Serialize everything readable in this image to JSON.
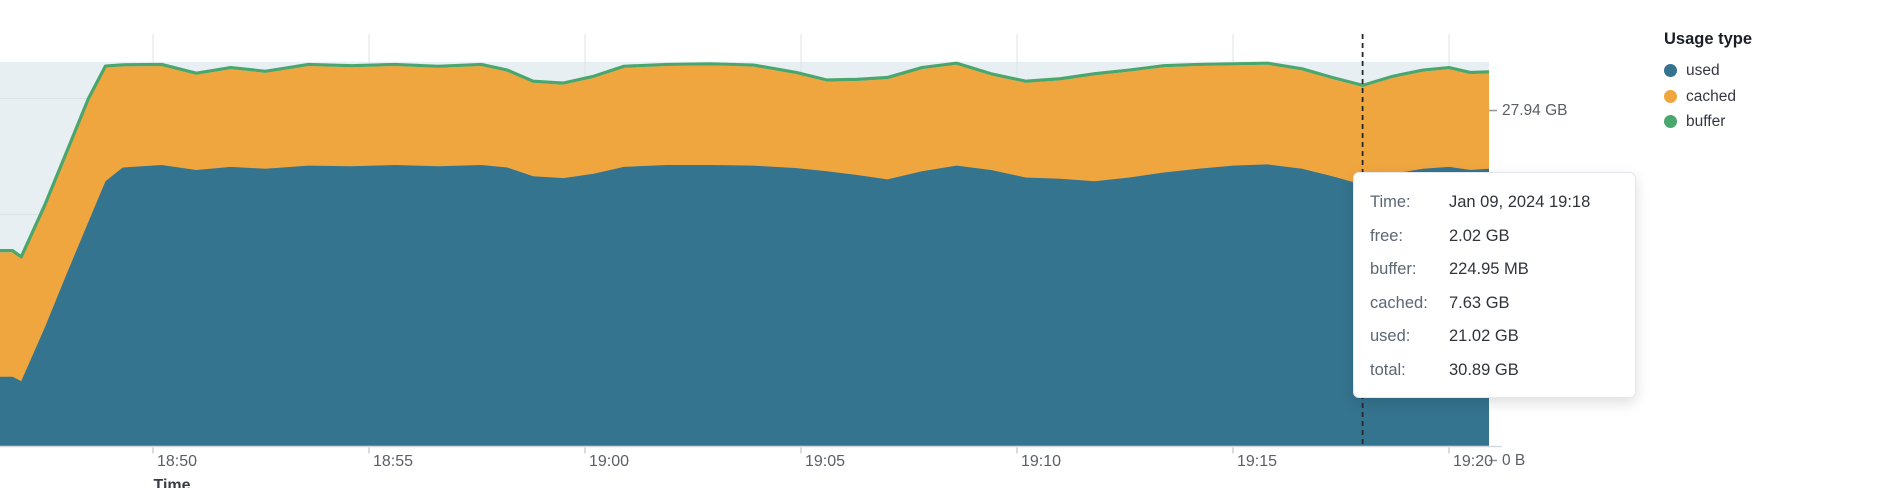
{
  "legend": {
    "title": "Usage type",
    "items": [
      {
        "label": "used",
        "color": "#35748f"
      },
      {
        "label": "cached",
        "color": "#f0a63f"
      },
      {
        "label": "buffer",
        "color": "#49a76d"
      }
    ]
  },
  "tooltip": {
    "rows": [
      {
        "label": "Time:",
        "value": "Jan 09, 2024 19:18"
      },
      {
        "label": "free:",
        "value": "2.02 GB"
      },
      {
        "label": "buffer:",
        "value": "224.95 MB"
      },
      {
        "label": "cached:",
        "value": "7.63 GB"
      },
      {
        "label": "used:",
        "value": "21.02 GB"
      },
      {
        "label": "total:",
        "value": "30.89 GB"
      }
    ]
  },
  "axes": {
    "x": {
      "title": "Time",
      "ticks": [
        {
          "label": "18:50",
          "t": 4
        },
        {
          "label": "18:55",
          "t": 9
        },
        {
          "label": "19:00",
          "t": 14
        },
        {
          "label": "19:05",
          "t": 19
        },
        {
          "label": "19:10",
          "t": 24
        },
        {
          "label": "19:15",
          "t": 29
        },
        {
          "label": "19:20",
          "t": 34
        }
      ]
    },
    "y": {
      "ticks": [
        {
          "label": "27.94 GB",
          "gb": 27.94
        },
        {
          "label": "0 B",
          "gb": 0
        }
      ]
    }
  },
  "chart_data": {
    "type": "area",
    "stacked": true,
    "title": "",
    "xlabel": "Time",
    "ylabel": "",
    "x_start_time": "18:46",
    "x_unit": "minutes since 18:46",
    "ylim_gb": [
      0,
      33.1
    ],
    "grid": true,
    "legend_position": "right",
    "series_order_bottom_to_top": [
      "used",
      "cached",
      "buffer",
      "free"
    ],
    "total_gb": 30.89,
    "buffer_gb": 0.22,
    "t": [
      0,
      0.75,
      0.95,
      1.5,
      2.0,
      2.5,
      2.9,
      3.3,
      4.2,
      5.0,
      5.8,
      6.6,
      7.6,
      8.6,
      9.6,
      10.6,
      11.6,
      12.2,
      12.8,
      13.5,
      14.2,
      14.9,
      15.9,
      16.9,
      17.9,
      18.9,
      19.6,
      20.3,
      21.0,
      21.8,
      22.6,
      23.4,
      24.2,
      25.0,
      25.8,
      26.6,
      27.4,
      28.2,
      29.0,
      29.8,
      30.6,
      31.3,
      32.0,
      32.7,
      33.4,
      34.0,
      34.5,
      34.93
    ],
    "used_gb": [
      5.6,
      5.6,
      5.25,
      9.6,
      13.85,
      18.0,
      21.3,
      22.4,
      22.6,
      22.2,
      22.45,
      22.3,
      22.55,
      22.5,
      22.6,
      22.5,
      22.6,
      22.4,
      21.7,
      21.55,
      21.9,
      22.45,
      22.6,
      22.6,
      22.55,
      22.35,
      22.1,
      21.8,
      21.45,
      22.1,
      22.55,
      22.2,
      21.6,
      21.5,
      21.3,
      21.6,
      22.0,
      22.3,
      22.55,
      22.65,
      22.3,
      21.7,
      21.02,
      21.9,
      22.3,
      22.45,
      22.2,
      22.3
    ],
    "cached_gb": [
      9.78,
      9.78,
      9.63,
      9.48,
      9.45,
      9.55,
      8.9,
      7.9,
      7.73,
      7.43,
      7.63,
      7.48,
      7.78,
      7.73,
      7.73,
      7.68,
      7.73,
      7.48,
      7.28,
      7.28,
      7.48,
      7.73,
      7.73,
      7.78,
      7.73,
      7.33,
      6.98,
      7.33,
      7.83,
      7.98,
      7.88,
      7.38,
      7.38,
      7.68,
      8.28,
      8.28,
      8.23,
      8.03,
      7.83,
      7.78,
      7.68,
      7.58,
      7.63,
      7.48,
      7.58,
      7.63,
      7.48,
      7.43
    ],
    "cursor": {
      "t": 32,
      "time_label": "19:18"
    },
    "colors": {
      "used": "#35748f",
      "cached": "#f0a63f",
      "buffer": "#49a76d",
      "free_background": "#e7eff2",
      "gridline": "#dce3e7",
      "axis_line": "#d4d9df",
      "cursor_line": "#26282c"
    }
  }
}
